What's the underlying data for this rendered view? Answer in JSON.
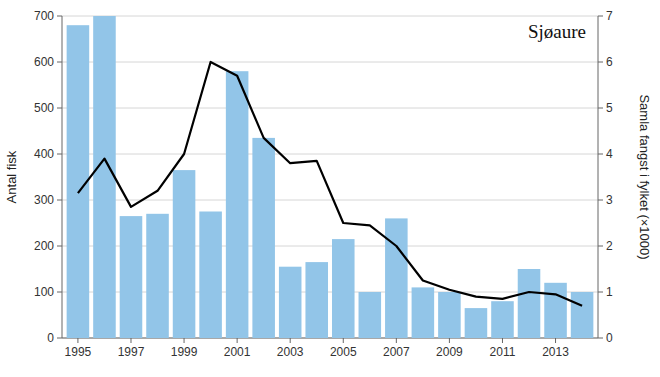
{
  "chart_data": {
    "type": "bar",
    "title": "Sjøaure",
    "x": [
      1995,
      1996,
      1997,
      1998,
      1999,
      2000,
      2001,
      2002,
      2003,
      2004,
      2005,
      2006,
      2007,
      2008,
      2009,
      2010,
      2011,
      2012,
      2013,
      2014
    ],
    "series": [
      {
        "type": "bar",
        "color": "#92C5E8",
        "values": [
          680,
          700,
          265,
          270,
          365,
          275,
          580,
          435,
          155,
          165,
          215,
          100,
          260,
          110,
          100,
          65,
          80,
          150,
          120,
          100
        ]
      },
      {
        "type": "line",
        "color": "#000000",
        "axis": "y2",
        "values": [
          3.15,
          3.9,
          2.85,
          3.2,
          4.0,
          6.0,
          5.7,
          4.35,
          3.8,
          3.85,
          2.5,
          2.45,
          2.0,
          1.25,
          1.05,
          0.9,
          0.85,
          1.0,
          0.95,
          0.7
        ]
      }
    ],
    "ylabel": "Antal fisk",
    "y2label": "Samla fangst i fylket (×1000)",
    "xlim": [
      1994.4,
      2014.6
    ],
    "xticks": [
      1995,
      1997,
      1999,
      2001,
      2003,
      2005,
      2007,
      2009,
      2011,
      2013
    ],
    "ylim": [
      0,
      700
    ],
    "yticks": [
      0,
      100,
      200,
      300,
      400,
      500,
      600,
      700
    ],
    "y2lim": [
      0,
      7
    ],
    "y2ticks": [
      0,
      1,
      2,
      3,
      4,
      5,
      6,
      7
    ],
    "grid": true
  }
}
